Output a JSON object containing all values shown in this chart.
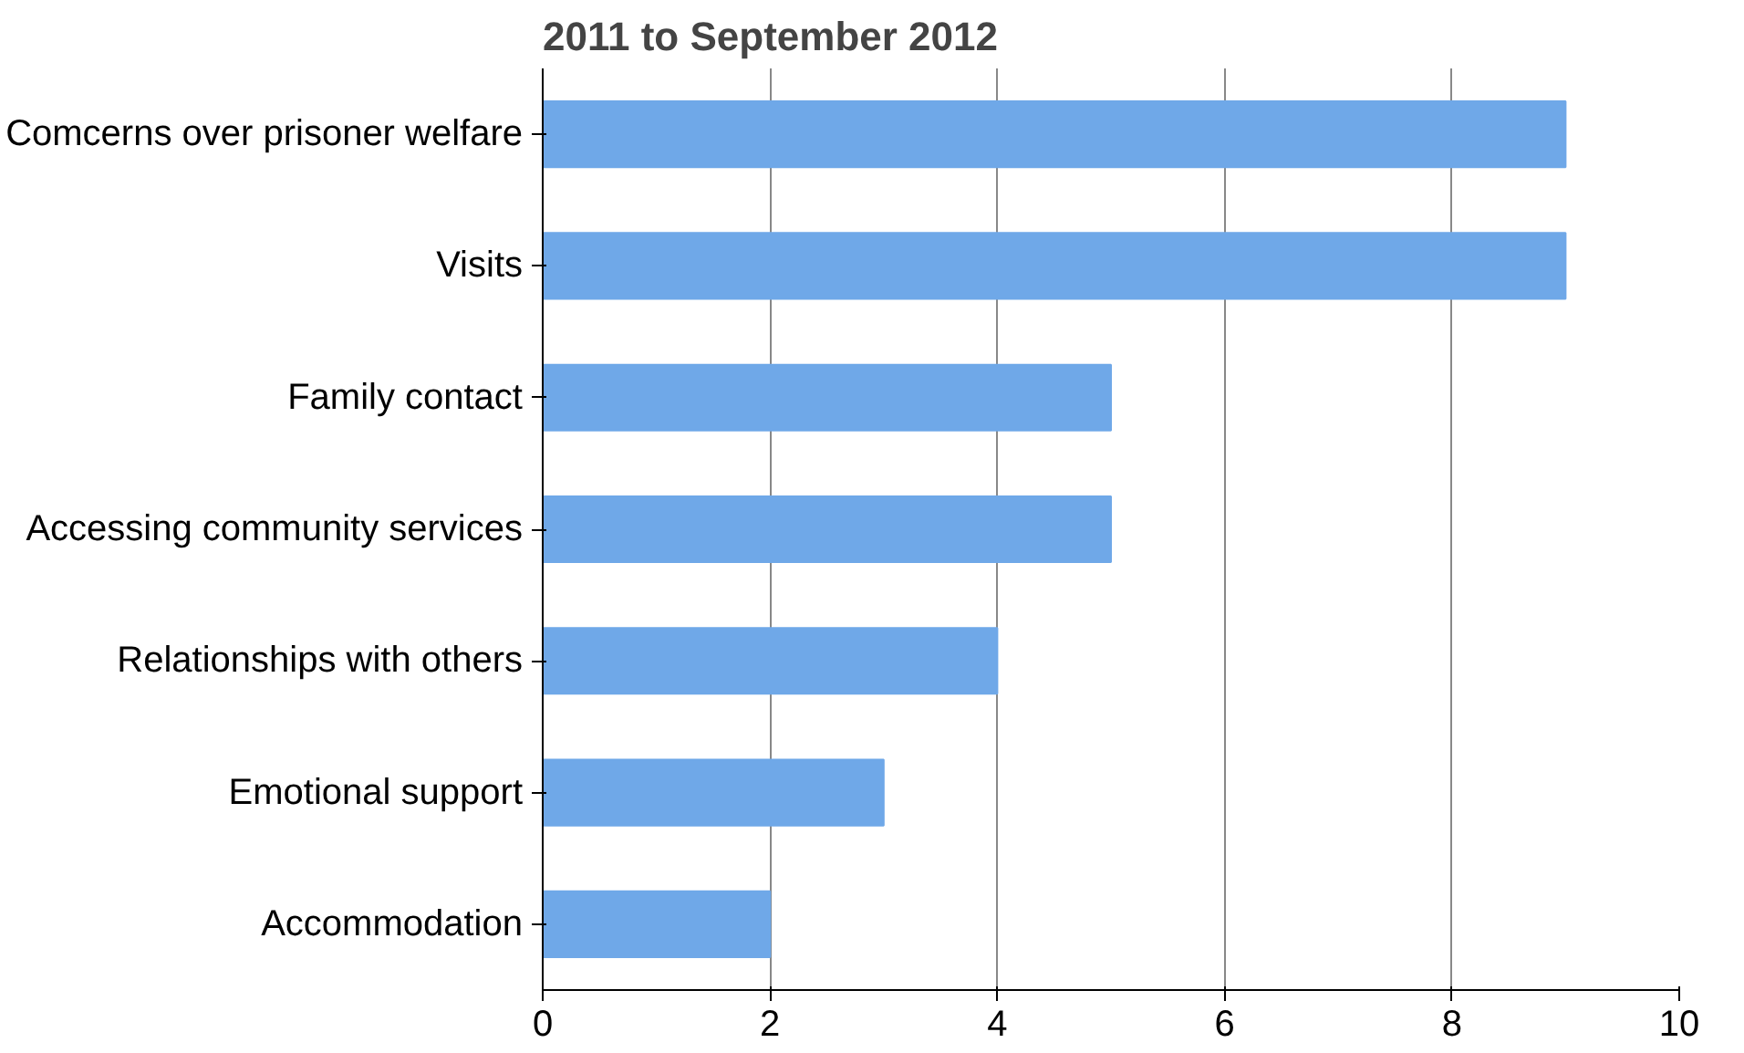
{
  "chart_data": {
    "type": "bar",
    "orientation": "horizontal",
    "title": "2011 to September 2012",
    "categories": [
      "Comcerns over prisoner welfare",
      "Visits",
      "Family contact",
      "Accessing community services",
      "Relationships with others",
      "Emotional support",
      "Accommodation"
    ],
    "values": [
      9,
      9,
      5,
      5,
      4,
      3,
      2
    ],
    "color": "#6fa8e8",
    "xlim": [
      0,
      10
    ],
    "xticks": [
      0,
      2,
      4,
      6,
      8,
      10
    ],
    "grid": "x"
  }
}
